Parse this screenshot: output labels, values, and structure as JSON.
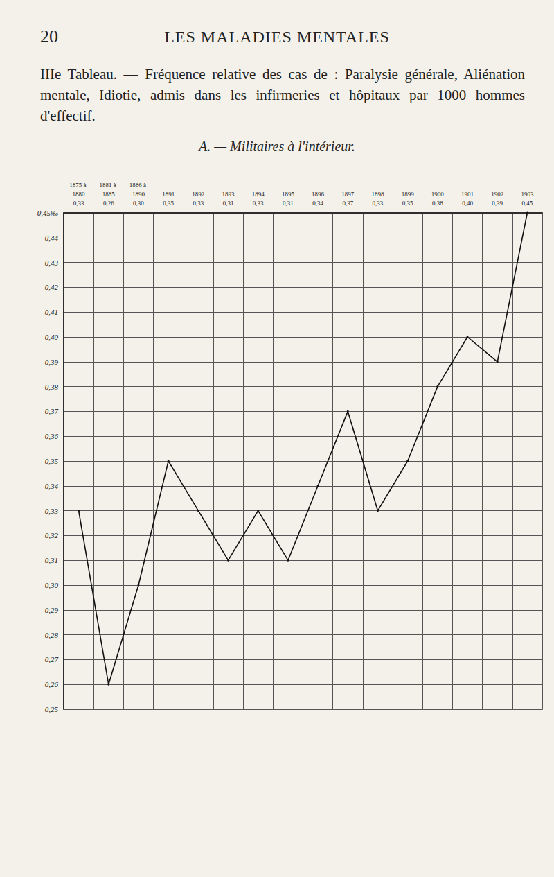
{
  "page": {
    "number": "20",
    "running_head": "LES MALADIES MENTALES",
    "caption": "IIIe Tableau. — Fréquence relative des cas de : Paralysie générale, Aliénation mentale, Idiotie, admis dans les infirmeries et hôpitaux par 1000 hommes d'effectif.",
    "section": "A. — Militaires à l'intérieur."
  },
  "chart_data": {
    "type": "line",
    "categories": [
      "1875 à 1880",
      "1881 à 1885",
      "1886 à 1890",
      "1891",
      "1892",
      "1893",
      "1894",
      "1895",
      "1896",
      "1897",
      "1898",
      "1899",
      "1900",
      "1901",
      "1902",
      "1903"
    ],
    "values": [
      0.33,
      0.26,
      0.3,
      0.35,
      0.33,
      0.31,
      0.33,
      0.31,
      0.34,
      0.37,
      0.33,
      0.35,
      0.38,
      0.4,
      0.39,
      0.45
    ],
    "value_labels": [
      "0,33",
      "0,26",
      "0,30",
      "0,35",
      "0,33",
      "0,31",
      "0,33",
      "0,31",
      "0,34",
      "0,37",
      "0,33",
      "0,35",
      "0,38",
      "0,40",
      "0,39",
      "0,45"
    ],
    "color": "#111111",
    "ylim": [
      0.25,
      0.45
    ],
    "yticks": [
      {
        "value": 0.25,
        "label": "0,25"
      },
      {
        "value": 0.26,
        "label": "0,26"
      },
      {
        "value": 0.27,
        "label": "0,27"
      },
      {
        "value": 0.28,
        "label": "0,28"
      },
      {
        "value": 0.29,
        "label": "0,29"
      },
      {
        "value": 0.3,
        "label": "0,30"
      },
      {
        "value": 0.31,
        "label": "0,31"
      },
      {
        "value": 0.32,
        "label": "0,32"
      },
      {
        "value": 0.33,
        "label": "0,33"
      },
      {
        "value": 0.34,
        "label": "0,34"
      },
      {
        "value": 0.35,
        "label": "0,35"
      },
      {
        "value": 0.36,
        "label": "0,36"
      },
      {
        "value": 0.37,
        "label": "0,37"
      },
      {
        "value": 0.38,
        "label": "0,38"
      },
      {
        "value": 0.39,
        "label": "0,39"
      },
      {
        "value": 0.4,
        "label": "0,40"
      },
      {
        "value": 0.41,
        "label": "0,41"
      },
      {
        "value": 0.42,
        "label": "0,42"
      },
      {
        "value": 0.43,
        "label": "0,43"
      },
      {
        "value": 0.44,
        "label": "0,44"
      },
      {
        "value": 0.45,
        "label": "0,45‰"
      }
    ],
    "grid": true
  }
}
